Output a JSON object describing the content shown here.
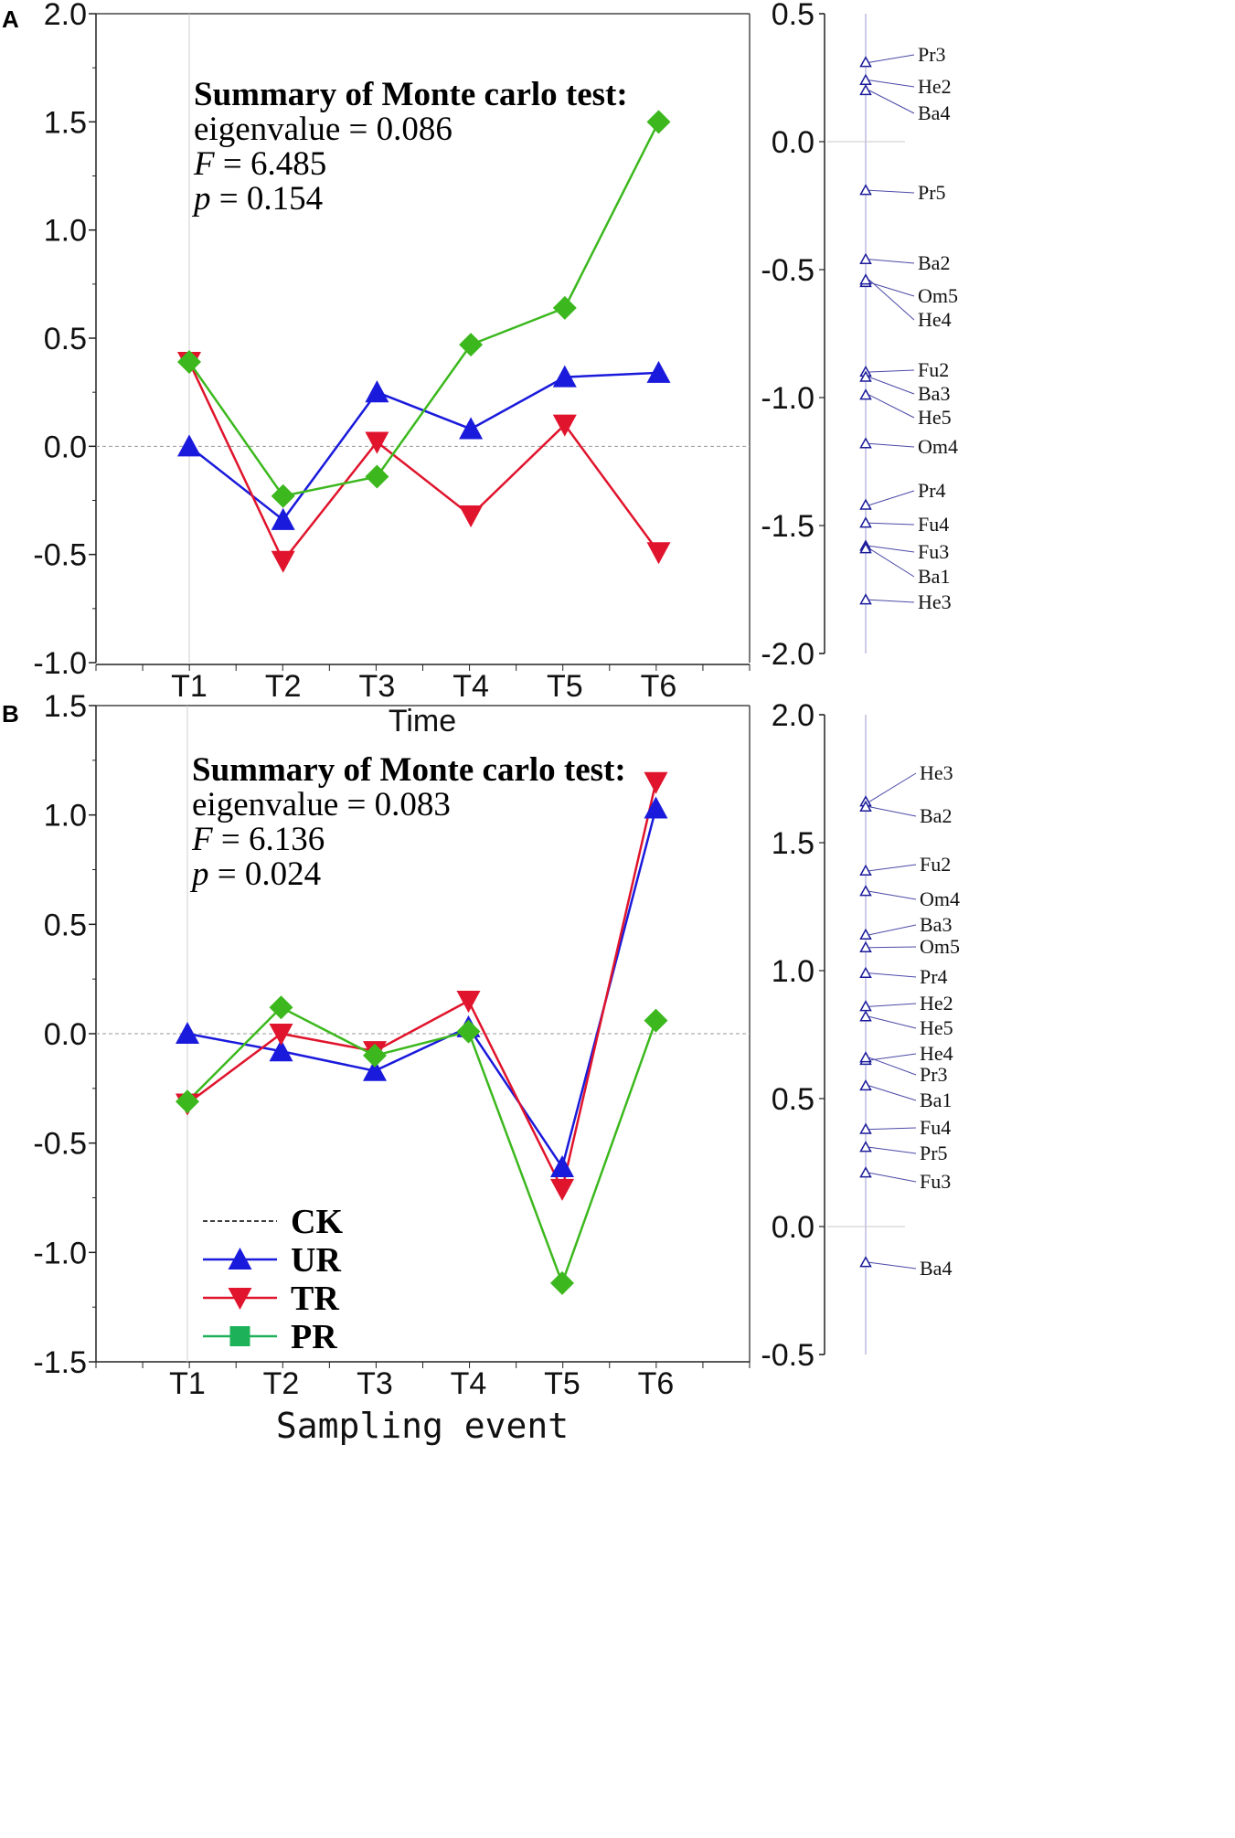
{
  "chart_data": [
    {
      "panel": "A",
      "type": "line",
      "categories": [
        "T1",
        "T2",
        "T3",
        "T4",
        "T5",
        "T6"
      ],
      "xlabel": "Time",
      "ylabel": "",
      "ylim": [
        -1.0,
        2.0
      ],
      "yticks": [
        "2.0",
        "1.5",
        "1.0",
        "0.5",
        "0.0",
        "-0.5",
        "-1.0"
      ],
      "series": [
        {
          "name": "UR",
          "color": "#1a1adc",
          "marker": "triangle-up",
          "values": [
            0.0,
            -0.34,
            0.25,
            0.08,
            0.32,
            0.34
          ]
        },
        {
          "name": "TR",
          "color": "#e0142c",
          "marker": "triangle-down",
          "values": [
            0.39,
            -0.53,
            0.02,
            -0.32,
            0.1,
            -0.49
          ]
        },
        {
          "name": "PR",
          "color": "#3cb81e",
          "marker": "diamond",
          "values": [
            0.39,
            -0.23,
            -0.14,
            0.47,
            0.64,
            1.5
          ]
        }
      ],
      "annotation": {
        "title": "Summary of Monte carlo test:",
        "eigenvalue": "eigenvalue = 0.086",
        "f_var": "F",
        "f_rest": " = 6.485",
        "p_var": "p",
        "p_rest": " = 0.154"
      },
      "species_axis": {
        "ylim": [
          -2.0,
          0.5
        ],
        "yticks": [
          "0.5",
          "0.0",
          "-0.5",
          "-1.0",
          "-1.5",
          "-2.0"
        ],
        "points": [
          {
            "label": "Pr3",
            "value": 0.31
          },
          {
            "label": "He2",
            "value": 0.24
          },
          {
            "label": "Ba4",
            "value": 0.2
          },
          {
            "label": "Pr5",
            "value": -0.19
          },
          {
            "label": "Ba2",
            "value": -0.46
          },
          {
            "label": "Om5",
            "value": -0.55
          },
          {
            "label": "He4",
            "value": -0.54
          },
          {
            "label": "Fu2",
            "value": -0.9
          },
          {
            "label": "Ba3",
            "value": -0.92
          },
          {
            "label": "He5",
            "value": -0.99
          },
          {
            "label": "Om4",
            "value": -1.18
          },
          {
            "label": "Pr4",
            "value": -1.42
          },
          {
            "label": "Fu4",
            "value": -1.49
          },
          {
            "label": "Fu3",
            "value": -1.58
          },
          {
            "label": "Ba1",
            "value": -1.59
          },
          {
            "label": "He3",
            "value": -1.79
          }
        ]
      }
    },
    {
      "panel": "B",
      "type": "line",
      "categories": [
        "T1",
        "T2",
        "T3",
        "T4",
        "T5",
        "T6"
      ],
      "xlabel": "Sampling event",
      "ylabel": "",
      "ylim": [
        -1.5,
        1.5
      ],
      "yticks": [
        "1.5",
        "1.0",
        "0.5",
        "0.0",
        "-0.5",
        "-1.0",
        "-1.5"
      ],
      "series": [
        {
          "name": "UR",
          "color": "#1a1adc",
          "marker": "triangle-up",
          "values": [
            0.0,
            -0.08,
            -0.17,
            0.03,
            -0.61,
            1.03
          ]
        },
        {
          "name": "TR",
          "color": "#e0142c",
          "marker": "triangle-down",
          "values": [
            -0.32,
            0.0,
            -0.08,
            0.15,
            -0.71,
            1.15
          ]
        },
        {
          "name": "PR",
          "color": "#3cb81e",
          "marker": "diamond",
          "values": [
            -0.31,
            0.12,
            -0.1,
            0.01,
            -1.14,
            0.06
          ]
        }
      ],
      "annotation": {
        "title": "Summary of Monte carlo test:",
        "eigenvalue": "eigenvalue = 0.083",
        "f_var": "F",
        "f_rest": " = 6.136",
        "p_var": "p",
        "p_rest": " = 0.024"
      },
      "legend": [
        {
          "name": "CK",
          "style": "dashed",
          "color": "#000000"
        },
        {
          "name": "UR",
          "style": "triangle-up",
          "color": "#1a1adc"
        },
        {
          "name": "TR",
          "style": "triangle-down",
          "color": "#e0142c"
        },
        {
          "name": "PR",
          "style": "square",
          "color": "#1db25a"
        }
      ],
      "species_axis": {
        "ylim": [
          -0.5,
          2.0
        ],
        "yticks": [
          "2.0",
          "1.5",
          "1.0",
          "0.5",
          "0.0",
          "-0.5"
        ],
        "points": [
          {
            "label": "He3",
            "value": 1.66
          },
          {
            "label": "Ba2",
            "value": 1.64
          },
          {
            "label": "Fu2",
            "value": 1.39
          },
          {
            "label": "Om4",
            "value": 1.31
          },
          {
            "label": "Ba3",
            "value": 1.14
          },
          {
            "label": "Om5",
            "value": 1.09
          },
          {
            "label": "Pr4",
            "value": 0.99
          },
          {
            "label": "He2",
            "value": 0.86
          },
          {
            "label": "He5",
            "value": 0.82
          },
          {
            "label": "He4",
            "value": 0.65
          },
          {
            "label": "Pr3",
            "value": 0.66
          },
          {
            "label": "Ba1",
            "value": 0.55
          },
          {
            "label": "Fu4",
            "value": 0.38
          },
          {
            "label": "Pr5",
            "value": 0.31
          },
          {
            "label": "Fu3",
            "value": 0.21
          },
          {
            "label": "Ba4",
            "value": -0.14
          }
        ]
      }
    }
  ]
}
